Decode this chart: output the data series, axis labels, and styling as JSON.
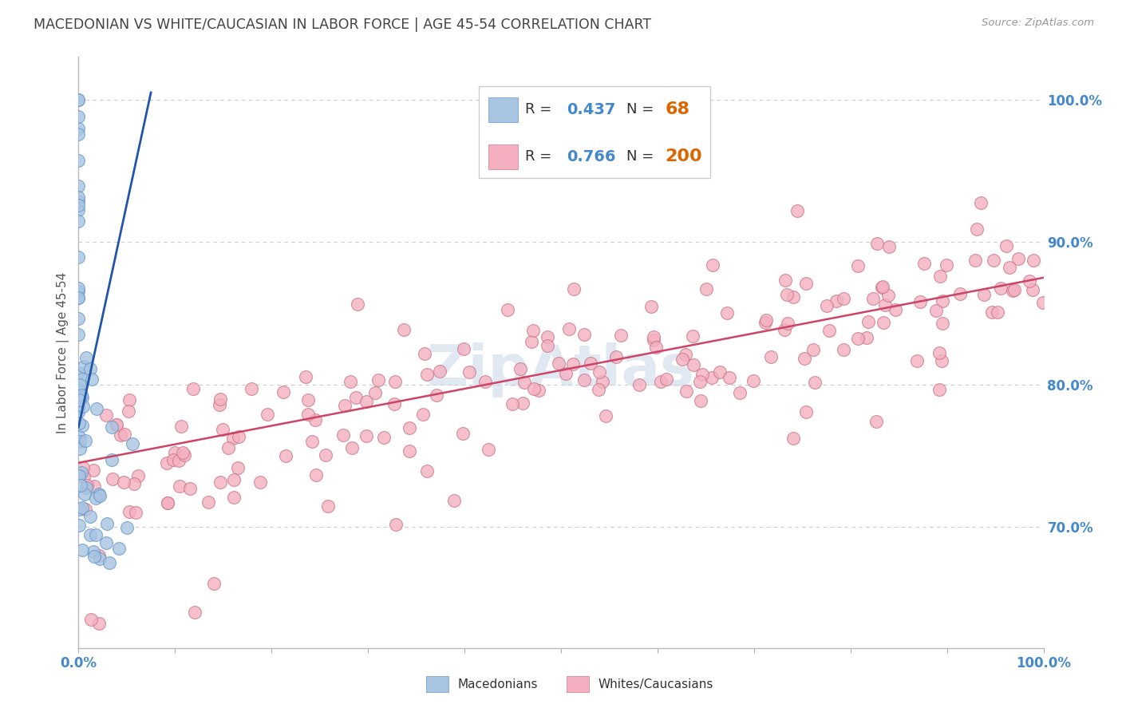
{
  "title": "MACEDONIAN VS WHITE/CAUCASIAN IN LABOR FORCE | AGE 45-54 CORRELATION CHART",
  "source": "Source: ZipAtlas.com",
  "ylabel": "In Labor Force | Age 45-54",
  "xlim": [
    0.0,
    1.0
  ],
  "ylim": [
    0.615,
    1.03
  ],
  "y_tick_positions": [
    0.7,
    0.8,
    0.9,
    1.0
  ],
  "y_tick_labels": [
    "70.0%",
    "80.0%",
    "90.0%",
    "100.0%"
  ],
  "macedonian_R": 0.437,
  "macedonian_N": 68,
  "white_R": 0.766,
  "white_N": 200,
  "legend_label_macedonian": "Macedonians",
  "legend_label_white": "Whites/Caucasians",
  "macedonian_color": "#a8c4e0",
  "macedonian_edge_color": "#6699cc",
  "macedonian_line_color": "#2255aa",
  "white_color": "#f4b0c0",
  "white_edge_color": "#cc7788",
  "white_line_color": "#cc4466",
  "background_color": "#ffffff",
  "title_color": "#444444",
  "axis_label_color": "#555555",
  "tick_label_color": "#4488cc",
  "source_color": "#999999",
  "legend_text_color": "#333333",
  "legend_value_color": "#4488cc",
  "legend_n_color": "#dd6600",
  "watermark_color": "#c8d8e8",
  "grid_color": "#cccccc",
  "white_trend_x0": 0.0,
  "white_trend_x1": 1.0,
  "white_trend_y0": 0.745,
  "white_trend_y1": 0.875,
  "mac_trend_x0": 0.0,
  "mac_trend_x1": 0.075,
  "mac_trend_y0": 0.77,
  "mac_trend_y1": 1.005
}
